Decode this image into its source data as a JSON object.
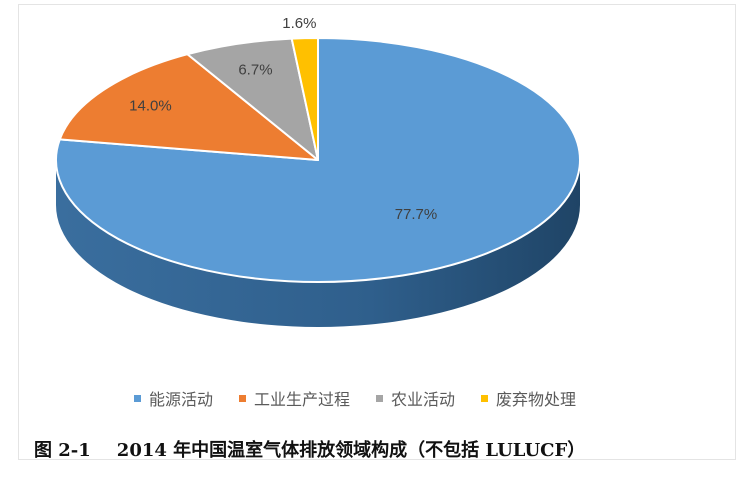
{
  "chart_data": {
    "type": "pie",
    "title": "",
    "categories": [
      "能源活动",
      "工业生产过程",
      "农业活动",
      "废弃物处理"
    ],
    "values": [
      77.7,
      14.0,
      6.7,
      1.6
    ],
    "value_labels": [
      "77.7%",
      "14.0%",
      "6.7%",
      "1.6%"
    ],
    "colors": [
      "#5b9bd5",
      "#ed7d31",
      "#a5a5a5",
      "#ffc000"
    ],
    "legend_position": "bottom"
  },
  "caption": {
    "number": "图 2-1",
    "text": "2014 年中国温室气体排放领域构成（不包括 LULUCF）"
  }
}
